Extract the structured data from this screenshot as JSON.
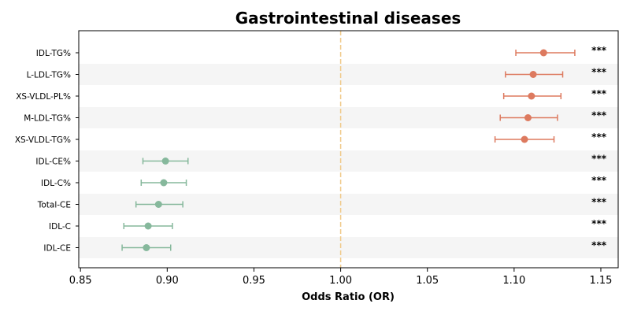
{
  "chart_data": {
    "type": "scatter",
    "subtype": "forest-plot",
    "title": "Gastrointestinal diseases",
    "xlabel": "Odds Ratio (OR)",
    "ylabel": "",
    "xlim": [
      0.849,
      1.16
    ],
    "xticks": [
      0.85,
      0.9,
      0.95,
      1.0,
      1.05,
      1.1,
      1.15
    ],
    "xtick_labels": [
      "0.85",
      "0.90",
      "0.95",
      "1.00",
      "1.05",
      "1.10",
      "1.15"
    ],
    "reference_line": 1.0,
    "grid": false,
    "row_shading": "alternating",
    "colors": {
      "increased": "#dd7a5f",
      "decreased": "#86b89c",
      "reference_line": "#f0c987",
      "row_band": "#f5f5f5"
    },
    "rows": [
      {
        "label": "IDL-TG%",
        "or": 1.117,
        "ci_low": 1.101,
        "ci_high": 1.135,
        "significance": "***",
        "direction": "increased"
      },
      {
        "label": "L-LDL-TG%",
        "or": 1.111,
        "ci_low": 1.095,
        "ci_high": 1.128,
        "significance": "***",
        "direction": "increased"
      },
      {
        "label": "XS-VLDL-PL%",
        "or": 1.11,
        "ci_low": 1.094,
        "ci_high": 1.127,
        "significance": "***",
        "direction": "increased"
      },
      {
        "label": "M-LDL-TG%",
        "or": 1.108,
        "ci_low": 1.092,
        "ci_high": 1.125,
        "significance": "***",
        "direction": "increased"
      },
      {
        "label": "XS-VLDL-TG%",
        "or": 1.106,
        "ci_low": 1.089,
        "ci_high": 1.123,
        "significance": "***",
        "direction": "increased"
      },
      {
        "label": "IDL-CE%",
        "or": 0.899,
        "ci_low": 0.886,
        "ci_high": 0.912,
        "significance": "***",
        "direction": "decreased"
      },
      {
        "label": "IDL-C%",
        "or": 0.898,
        "ci_low": 0.885,
        "ci_high": 0.911,
        "significance": "***",
        "direction": "decreased"
      },
      {
        "label": "Total-CE",
        "or": 0.895,
        "ci_low": 0.882,
        "ci_high": 0.909,
        "significance": "***",
        "direction": "decreased"
      },
      {
        "label": "IDL-C",
        "or": 0.889,
        "ci_low": 0.875,
        "ci_high": 0.903,
        "significance": "***",
        "direction": "decreased"
      },
      {
        "label": "IDL-CE",
        "or": 0.888,
        "ci_low": 0.874,
        "ci_high": 0.902,
        "significance": "***",
        "direction": "decreased"
      }
    ]
  }
}
